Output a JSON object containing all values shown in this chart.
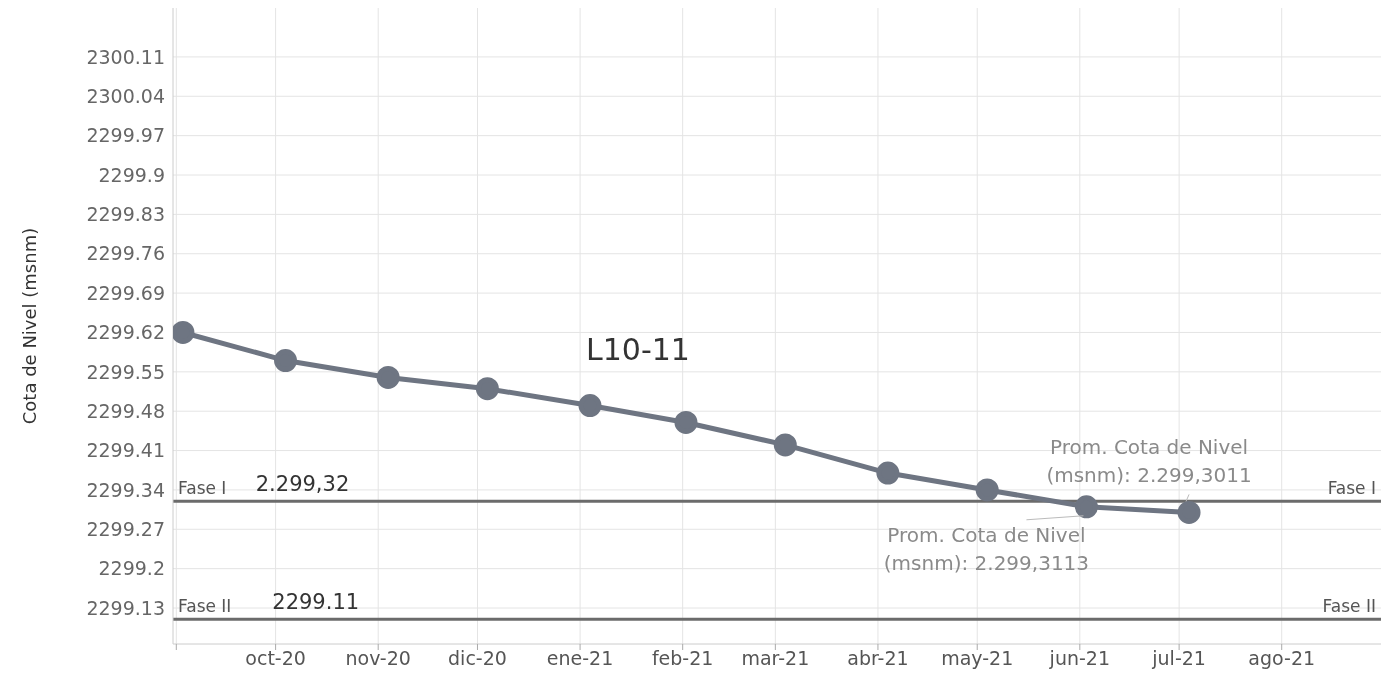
{
  "chart_data": {
    "type": "line",
    "title": "L10-11",
    "ylabel": "Cota de Nivel (msnm)",
    "x": [
      "2020-09-03",
      "2020-10-04",
      "2020-11-04",
      "2020-12-04",
      "2021-01-04",
      "2021-02-02",
      "2021-03-04",
      "2021-04-04",
      "2021-05-04",
      "2021-06-03",
      "2021-07-04"
    ],
    "series": [
      {
        "color": "#6e7582",
        "values": [
          2299.62,
          2299.57,
          2299.54,
          2299.52,
          2299.49,
          2299.46,
          2299.42,
          2299.37,
          2299.34,
          2299.31,
          2299.3
        ]
      }
    ],
    "xlim": [
      "2020-08-31",
      "2021-08-31"
    ],
    "xticks": [
      {
        "value": "2020-09-01",
        "label": null
      },
      {
        "value": "2020-10-01",
        "label": "oct-20"
      },
      {
        "value": "2020-11-01",
        "label": "nov-20"
      },
      {
        "value": "2020-12-01",
        "label": "dic-20"
      },
      {
        "value": "2021-01-01",
        "label": "ene-21"
      },
      {
        "value": "2021-02-01",
        "label": "feb-21"
      },
      {
        "value": "2021-03-01",
        "label": "mar-21"
      },
      {
        "value": "2021-04-01",
        "label": "abr-21"
      },
      {
        "value": "2021-05-01",
        "label": "may-21"
      },
      {
        "value": "2021-06-01",
        "label": "jun-21"
      },
      {
        "value": "2021-07-01",
        "label": "jul-21"
      },
      {
        "value": "2021-08-01",
        "label": "ago-21"
      }
    ],
    "ylim": [
      2299.066,
      2300.197
    ],
    "yticks": [
      2299.13,
      2299.2,
      2299.27,
      2299.34,
      2299.41,
      2299.48,
      2299.55,
      2299.62,
      2299.69,
      2299.76,
      2299.83,
      2299.9,
      2299.97,
      2300.04,
      2300.11
    ],
    "ref_lines": [
      {
        "axis": "y",
        "value": 2299.32,
        "label": "Fase I",
        "color": "#6b6b6b"
      },
      {
        "axis": "y",
        "value": 2299.11,
        "label": "Fase II",
        "color": "#6b6b6b"
      }
    ],
    "annotations": [
      {
        "text": "2.299,32",
        "x": "2020-09-25",
        "y": 2299.32
      },
      {
        "text": "2299.11",
        "x": "2020-09-30",
        "y": 2299.11
      },
      {
        "text": "Prom. Cota de Nivel\n(msnm): 2.299,3011",
        "x": "2021-07-04",
        "y": 2299.3
      },
      {
        "text": "Prom. Cota de Nivel\n(msnm): 2.299,3113",
        "x": "2021-06-03",
        "y": 2299.31
      }
    ],
    "grid": true,
    "marker": "circle",
    "line_style": "solid"
  }
}
